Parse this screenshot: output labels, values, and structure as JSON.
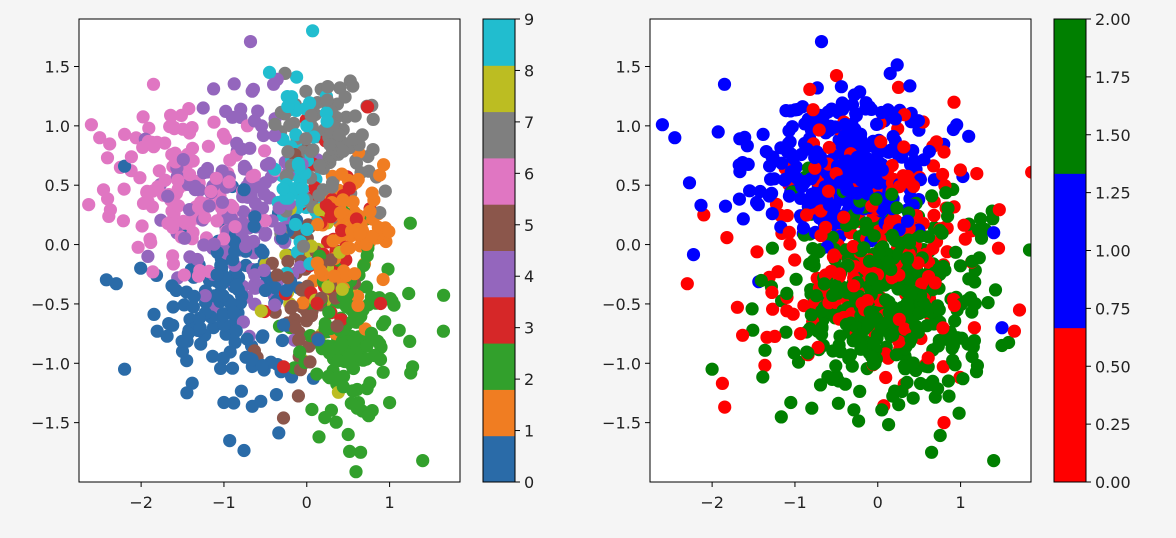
{
  "chart_data": [
    {
      "type": "scatter",
      "title": "",
      "xlabel": "",
      "ylabel": "",
      "xlim": [
        -2.75,
        1.85
      ],
      "ylim": [
        -2.0,
        1.9
      ],
      "xticks": [
        -2,
        -1,
        0,
        1
      ],
      "yticks": [
        -1.5,
        -1.0,
        -0.5,
        0.0,
        0.5,
        1.0,
        1.5
      ],
      "grid": false,
      "colorbar": {
        "ticks": [
          "0",
          "1",
          "2",
          "3",
          "4",
          "5",
          "6",
          "7",
          "8",
          "9"
        ],
        "colors": [
          "#2a6ba8",
          "#f07d22",
          "#32a02c",
          "#d62728",
          "#9466bd",
          "#8b564b",
          "#e076c2",
          "#7f7f7f",
          "#bcbd22",
          "#21bdcf"
        ]
      },
      "clusters": [
        {
          "class": 0,
          "center": [
            -0.95,
            -0.45
          ],
          "spread": [
            0.42,
            0.42
          ],
          "count": 150,
          "extremes": [
            [
              -2.2,
              -1.05
            ],
            [
              -2.3,
              -0.33
            ],
            [
              -2.2,
              0.66
            ],
            [
              -1.0,
              -1.33
            ],
            [
              -1.5,
              -0.9
            ]
          ]
        },
        {
          "class": 1,
          "center": [
            0.52,
            0.05
          ],
          "spread": [
            0.22,
            0.28
          ],
          "count": 95,
          "extremes": [
            [
              0.55,
              0.5
            ],
            [
              0.35,
              -0.75
            ]
          ]
        },
        {
          "class": 2,
          "center": [
            0.55,
            -0.75
          ],
          "spread": [
            0.3,
            0.38
          ],
          "count": 145,
          "extremes": [
            [
              1.4,
              -1.82
            ],
            [
              1.65,
              -0.73
            ],
            [
              0.65,
              -1.75
            ],
            [
              1.25,
              0.18
            ],
            [
              0.5,
              -1.6
            ]
          ]
        },
        {
          "class": 3,
          "center": [
            0.3,
            0.05
          ],
          "spread": [
            0.25,
            0.4
          ],
          "count": 45,
          "extremes": [
            [
              -0.28,
              -1.03
            ],
            [
              0.55,
              0.85
            ]
          ]
        },
        {
          "class": 4,
          "center": [
            -0.75,
            0.3
          ],
          "spread": [
            0.4,
            0.45
          ],
          "count": 150,
          "extremes": [
            [
              -0.68,
              1.71
            ],
            [
              -0.4,
              1.35
            ],
            [
              -1.25,
              1.15
            ]
          ]
        },
        {
          "class": 5,
          "center": [
            -0.05,
            -0.4
          ],
          "spread": [
            0.22,
            0.38
          ],
          "count": 55,
          "extremes": [
            [
              -0.6,
              -0.95
            ],
            [
              -0.15,
              0.1
            ]
          ]
        },
        {
          "class": 6,
          "center": [
            -1.45,
            0.45
          ],
          "spread": [
            0.42,
            0.32
          ],
          "count": 140,
          "extremes": [
            [
              -2.6,
              1.01
            ],
            [
              -2.5,
              0.9
            ],
            [
              -1.85,
              1.35
            ],
            [
              -2.25,
              0.65
            ]
          ]
        },
        {
          "class": 7,
          "center": [
            0.25,
            0.85
          ],
          "spread": [
            0.28,
            0.28
          ],
          "count": 95,
          "extremes": [
            [
              0.4,
              1.32
            ],
            [
              0.8,
              0.8
            ],
            [
              0.3,
              0.22
            ]
          ]
        },
        {
          "class": 8,
          "center": [
            0.1,
            -0.35
          ],
          "spread": [
            0.25,
            0.35
          ],
          "count": 30,
          "extremes": [
            [
              -0.2,
              0.3
            ]
          ]
        },
        {
          "class": 9,
          "center": [
            -0.1,
            0.55
          ],
          "spread": [
            0.15,
            0.45
          ],
          "count": 60,
          "extremes": [
            [
              -0.45,
              1.45
            ],
            [
              0.0,
              1.0
            ]
          ]
        }
      ]
    },
    {
      "type": "scatter",
      "title": "",
      "xlabel": "",
      "ylabel": "",
      "xlim": [
        -2.75,
        1.85
      ],
      "ylim": [
        -2.0,
        1.9
      ],
      "xticks": [
        -2,
        -1,
        0,
        1
      ],
      "yticks": [
        -1.5,
        -1.0,
        -0.5,
        0.0,
        0.5,
        1.0,
        1.5
      ],
      "grid": false,
      "colorbar": {
        "ticks": [
          "0.00",
          "0.25",
          "0.50",
          "0.75",
          "1.00",
          "1.25",
          "1.50",
          "1.75",
          "2.00"
        ],
        "range": [
          0,
          2
        ],
        "colors": [
          "#ff0000",
          "#0000ff",
          "#007f00"
        ]
      },
      "clusters": [
        {
          "class": 1,
          "center": [
            -0.45,
            0.65
          ],
          "spread": [
            0.55,
            0.32
          ],
          "count": 330,
          "extremes": [
            [
              -2.6,
              1.01
            ],
            [
              -2.45,
              0.9
            ],
            [
              -0.68,
              1.71
            ],
            [
              -1.85,
              1.35
            ],
            [
              1.4,
              0.1
            ],
            [
              1.5,
              -0.7
            ]
          ]
        },
        {
          "class": 2,
          "center": [
            0.05,
            -0.45
          ],
          "spread": [
            0.6,
            0.4
          ],
          "count": 430,
          "extremes": [
            [
              1.4,
              -1.82
            ],
            [
              0.65,
              -1.75
            ],
            [
              -1.05,
              -1.33
            ],
            [
              -2.0,
              -1.05
            ],
            [
              1.5,
              -0.85
            ]
          ]
        },
        {
          "class": 0,
          "center": [
            -0.1,
            -0.05
          ],
          "spread": [
            0.7,
            0.55
          ],
          "count": 250,
          "extremes": [
            [
              -2.3,
              -0.33
            ],
            [
              1.65,
              -0.73
            ],
            [
              0.8,
              -1.5
            ],
            [
              -2.1,
              0.25
            ],
            [
              0.8,
              0.78
            ]
          ]
        }
      ]
    }
  ]
}
